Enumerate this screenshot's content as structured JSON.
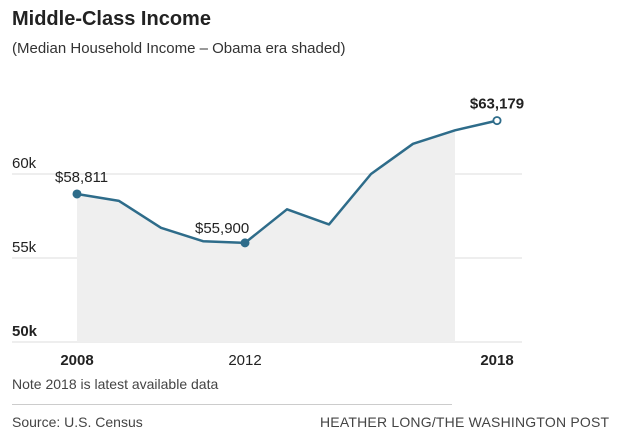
{
  "header": {
    "title": "Middle-Class Income",
    "subtitle": "(Median Household Income – Obama era shaded)"
  },
  "footer": {
    "note": "Note 2018 is latest available data",
    "source": "Source: U.S. Census",
    "credit": "HEATHER LONG/THE WASHINGTON POST"
  },
  "colors": {
    "line": "#2e6c8a",
    "shade": "#efefef",
    "grid": "#dcdcdc"
  },
  "chart_data": {
    "type": "area",
    "title": "Middle-Class Income",
    "subtitle": "(Median Household Income – Obama era shaded)",
    "x": [
      2008,
      2009,
      2010,
      2011,
      2012,
      2013,
      2014,
      2015,
      2016,
      2017,
      2018
    ],
    "values": [
      58811,
      58400,
      56800,
      56000,
      55900,
      57900,
      57000,
      60000,
      61800,
      62600,
      63179
    ],
    "shaded_range": [
      2008,
      2017
    ],
    "ylim": [
      50000,
      65000
    ],
    "yticks": [
      {
        "value": 60000,
        "label": "60k",
        "bold": false
      },
      {
        "value": 55000,
        "label": "55k",
        "bold": false
      },
      {
        "value": 50000,
        "label": "50k",
        "bold": true
      }
    ],
    "xticks": [
      {
        "value": 2008,
        "label": "2008",
        "bold": true
      },
      {
        "value": 2012,
        "label": "2012",
        "bold": false
      },
      {
        "value": 2018,
        "label": "2018",
        "bold": true
      }
    ],
    "annotations": [
      {
        "x": 2008,
        "value": 58811,
        "label": "$58,811",
        "marker": "filled",
        "bold": false
      },
      {
        "x": 2012,
        "value": 55900,
        "label": "$55,900",
        "marker": "filled",
        "bold": false
      },
      {
        "x": 2018,
        "value": 63179,
        "label": "$63,179",
        "marker": "open",
        "bold": true
      }
    ],
    "xlabel": "",
    "ylabel": ""
  }
}
